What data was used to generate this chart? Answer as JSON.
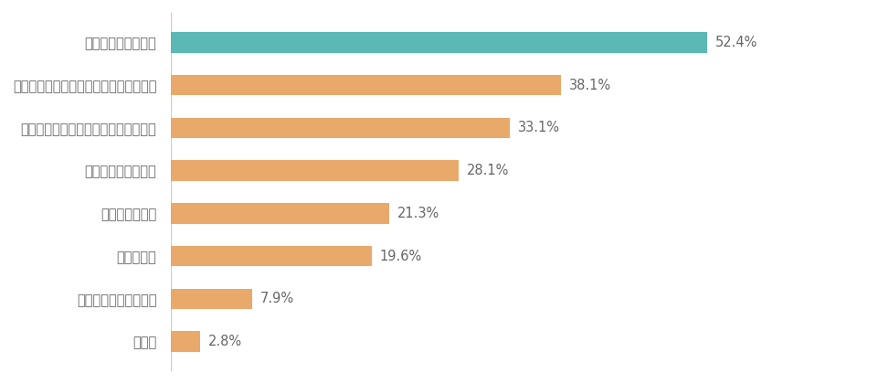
{
  "categories": [
    "水道光熱費が増えた",
    "仕事用のスペースを確保するのが難しい",
    "仕事と家庭の区別があいまいになった",
    "家事の負担が増えた",
    "通信費が増えた",
    "課題はない",
    "子育ての負担が増えた",
    "その他"
  ],
  "values": [
    52.4,
    38.1,
    33.1,
    28.1,
    21.3,
    19.6,
    7.9,
    2.8
  ],
  "bar_colors": [
    "#5bb8b4",
    "#e8a96a",
    "#e8a96a",
    "#e8a96a",
    "#e8a96a",
    "#e8a96a",
    "#e8a96a",
    "#e8a96a"
  ],
  "label_color": "#666666",
  "value_color": "#666666",
  "background_color": "#ffffff",
  "bar_height": 0.48,
  "xlim": [
    0,
    68
  ],
  "label_fontsize": 10.5,
  "value_fontsize": 10.5,
  "divider_color": "#cccccc",
  "divider_linewidth": 1.0
}
